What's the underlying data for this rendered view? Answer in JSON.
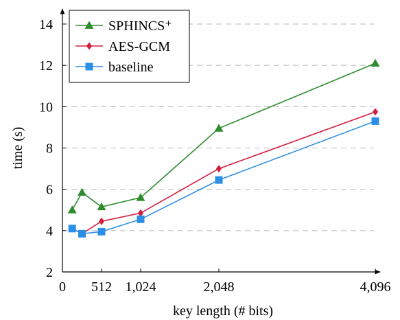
{
  "chart_data": {
    "type": "line",
    "xlabel": "key length (# bits)",
    "ylabel": "time (s)",
    "xlim": [
      0,
      4096
    ],
    "ylim": [
      2,
      14
    ],
    "x_ticks": [
      0,
      512,
      1024,
      2048,
      4096
    ],
    "x_tick_labels": [
      "0",
      "512",
      "1,024",
      "2,048",
      "4,096"
    ],
    "y_ticks": [
      2,
      4,
      6,
      8,
      10,
      12,
      14
    ],
    "y_tick_labels": [
      "2",
      "4",
      "6",
      "8",
      "10",
      "12",
      "14"
    ],
    "grid": "horizontal dashed",
    "legend_position": "top-left",
    "series": [
      {
        "name": "SPHINCS⁺",
        "color": "#2e8b2e",
        "marker": "triangle",
        "x": [
          128,
          256,
          512,
          1024,
          2048,
          4096
        ],
        "values": [
          5.0,
          5.85,
          5.15,
          5.6,
          8.95,
          12.1
        ]
      },
      {
        "name": "AES-GCM",
        "color": "#d0203f",
        "marker": "diamond",
        "x": [
          128,
          256,
          512,
          1024,
          2048,
          4096
        ],
        "values": [
          4.1,
          3.85,
          4.45,
          4.85,
          7.0,
          9.75
        ]
      },
      {
        "name": "baseline",
        "color": "#2b8fe8",
        "marker": "square",
        "x": [
          128,
          256,
          512,
          1024,
          2048,
          4096
        ],
        "values": [
          4.1,
          3.85,
          3.95,
          4.55,
          6.45,
          9.3
        ]
      }
    ]
  }
}
